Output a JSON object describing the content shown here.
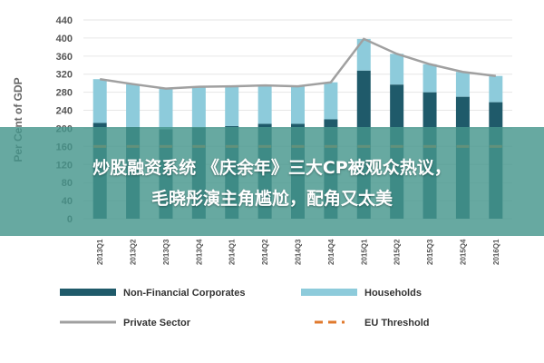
{
  "chart_data": {
    "type": "bar",
    "stacked": true,
    "ylabel": "Per Cent of GDP",
    "ylim": [
      0,
      440
    ],
    "yticks": [
      0,
      40,
      80,
      120,
      160,
      200,
      240,
      280,
      320,
      360,
      400,
      440
    ],
    "categories": [
      "2013Q1",
      "2013Q2",
      "2013Q3",
      "2013Q4",
      "2014Q1",
      "2014Q2",
      "2014Q3",
      "2014Q4",
      "2015Q1",
      "2015Q2",
      "2015Q3",
      "2015Q4",
      "2016Q1"
    ],
    "series": [
      {
        "name": "Non-Financial Corporates",
        "kind": "bar",
        "color": "#1f5a6a",
        "values": [
          212,
          203,
          198,
          202,
          205,
          210,
          210,
          220,
          328,
          297,
          280,
          270,
          258
        ]
      },
      {
        "name": "Households",
        "kind": "bar",
        "color": "#8dcbdb",
        "values": [
          97,
          95,
          90,
          90,
          88,
          85,
          83,
          82,
          70,
          68,
          62,
          55,
          58
        ]
      },
      {
        "name": "Private Sector",
        "kind": "line",
        "color": "#a0a0a0",
        "values": [
          309,
          298,
          288,
          292,
          293,
          295,
          293,
          302,
          398,
          365,
          342,
          325,
          316
        ]
      },
      {
        "name": "EU Threshold",
        "kind": "line-dashed",
        "color": "#e07a2e",
        "values": [
          160,
          160,
          160,
          160,
          160,
          160,
          160,
          160,
          160,
          160,
          160,
          160,
          160
        ]
      }
    ],
    "legend_position": "bottom",
    "grid": true
  },
  "overlay": {
    "line1": "炒股融资系统 《庆余年》三大CP被观众热议，",
    "line2": "毛晓彤演主角尴尬，配角又太美"
  }
}
